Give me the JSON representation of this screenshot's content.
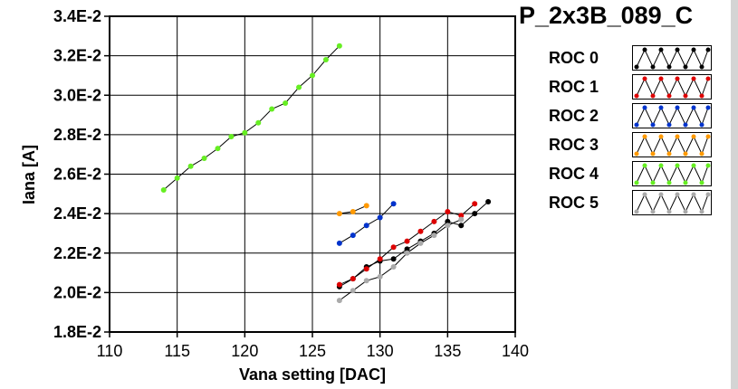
{
  "chart_data": {
    "type": "scatter",
    "title": "P_2x3B_089_C",
    "xlabel": "Vana setting [DAC]",
    "ylabel": "Iana [A]",
    "xlim": [
      110,
      140
    ],
    "ylim": [
      0.018,
      0.034
    ],
    "x_ticks": [
      110,
      115,
      120,
      125,
      130,
      135,
      140
    ],
    "y_ticks": [
      0.018,
      0.02,
      0.022,
      0.024,
      0.026,
      0.028,
      0.03,
      0.032,
      0.034
    ],
    "x_tick_labels": [
      "110",
      "115",
      "120",
      "125",
      "130",
      "135",
      "140"
    ],
    "y_tick_labels": [
      "1.8E-2",
      "2.0E-2",
      "2.2E-2",
      "2.4E-2",
      "2.6E-2",
      "2.8E-2",
      "3.0E-2",
      "3.2E-2",
      "3.4E-2"
    ],
    "grid": true,
    "legend_position": "right",
    "series": [
      {
        "name": "ROC 0",
        "color": "#000000",
        "x": [
          127,
          128,
          129,
          130,
          131,
          132,
          133,
          134,
          135,
          136,
          137,
          138
        ],
        "y": [
          0.0203,
          0.0207,
          0.0213,
          0.0216,
          0.0217,
          0.0222,
          0.0226,
          0.023,
          0.0236,
          0.0234,
          0.024,
          0.0246
        ]
      },
      {
        "name": "ROC 1",
        "color": "#dd0000",
        "x": [
          127,
          128,
          129,
          130,
          131,
          132,
          133,
          134,
          135,
          136,
          137
        ],
        "y": [
          0.0204,
          0.0207,
          0.0212,
          0.0217,
          0.0223,
          0.0226,
          0.0231,
          0.0236,
          0.0241,
          0.0239,
          0.0245
        ]
      },
      {
        "name": "ROC 2",
        "color": "#0033cc",
        "x": [
          127,
          128,
          129,
          130,
          131
        ],
        "y": [
          0.0225,
          0.0229,
          0.0234,
          0.0238,
          0.0245
        ]
      },
      {
        "name": "ROC 3",
        "color": "#ff9900",
        "x": [
          127,
          128,
          129
        ],
        "y": [
          0.024,
          0.0241,
          0.0244
        ]
      },
      {
        "name": "ROC 4",
        "color": "#66ee22",
        "x": [
          114,
          115,
          116,
          117,
          118,
          119,
          120,
          121,
          122,
          123,
          124,
          125,
          126,
          127
        ],
        "y": [
          0.0252,
          0.0258,
          0.0264,
          0.0268,
          0.0273,
          0.0279,
          0.0281,
          0.0286,
          0.0293,
          0.0296,
          0.0304,
          0.031,
          0.0318,
          0.0325
        ]
      },
      {
        "name": "ROC 5",
        "color": "#aaaaaa",
        "x": [
          127,
          128,
          129,
          130,
          131,
          132,
          133,
          134,
          135,
          136
        ],
        "y": [
          0.0196,
          0.0201,
          0.0206,
          0.0208,
          0.0213,
          0.022,
          0.0225,
          0.0229,
          0.0234,
          0.0237
        ]
      }
    ]
  }
}
